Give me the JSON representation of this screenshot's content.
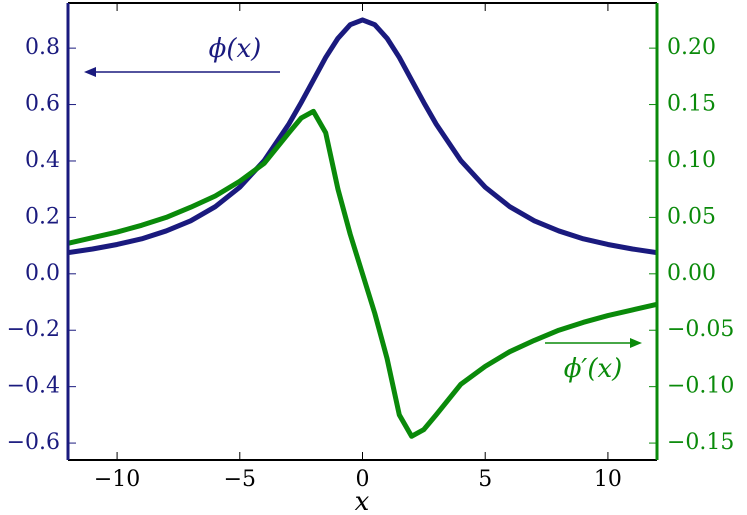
{
  "chart_data": {
    "type": "line",
    "xlabel": "x",
    "x": [
      -12,
      -11,
      -10,
      -9,
      -8,
      -7,
      -6,
      -5,
      -4,
      -3,
      -2.5,
      -2,
      -1.5,
      -1,
      -0.5,
      0,
      0.5,
      1,
      1.5,
      2,
      2.5,
      3,
      4,
      5,
      6,
      7,
      8,
      9,
      10,
      11,
      12
    ],
    "series": [
      {
        "name": "ϕ(x)",
        "color": "#1a1a7e",
        "axis": "y",
        "values": [
          0.075,
          0.088,
          0.104,
          0.124,
          0.152,
          0.188,
          0.238,
          0.307,
          0.402,
          0.531,
          0.607,
          0.687,
          0.767,
          0.835,
          0.883,
          0.9,
          0.883,
          0.835,
          0.767,
          0.687,
          0.607,
          0.531,
          0.402,
          0.307,
          0.238,
          0.188,
          0.152,
          0.124,
          0.104,
          0.088,
          0.075
        ]
      },
      {
        "name": "ϕ′(x)",
        "color": "#0a8a0a",
        "axis": "y2",
        "values": [
          0.027,
          0.032,
          0.037,
          0.043,
          0.05,
          0.059,
          0.069,
          0.082,
          0.098,
          0.125,
          0.138,
          0.144,
          0.125,
          0.075,
          0.035,
          0,
          -0.035,
          -0.075,
          -0.125,
          -0.144,
          -0.138,
          -0.125,
          -0.098,
          -0.082,
          -0.069,
          -0.059,
          -0.05,
          -0.043,
          -0.037,
          -0.032,
          -0.027
        ]
      }
    ],
    "xlim": [
      -12,
      12
    ],
    "xticks": [
      {
        "value": -10,
        "label": "−10"
      },
      {
        "value": -5,
        "label": "−5"
      },
      0,
      5,
      10
    ],
    "ylim": [
      -0.66,
      0.96
    ],
    "yticks": [
      {
        "value": -0.6,
        "label": "−0.6"
      },
      {
        "value": -0.4,
        "label": "−0.4"
      },
      {
        "value": -0.2,
        "label": "−0.2"
      },
      {
        "value": 0,
        "label": "0.0"
      },
      0.2,
      0.4,
      0.6,
      0.8
    ],
    "y2lim": [
      -0.165,
      0.24
    ],
    "y2ticks": [
      {
        "value": -0.15,
        "label": "−0.15"
      },
      {
        "value": -0.1,
        "label": "−0.10"
      },
      {
        "value": -0.05,
        "label": "−0.05"
      },
      {
        "value": 0,
        "label": "0.00"
      },
      0.05,
      {
        "value": 0.1,
        "label": "0.10"
      },
      0.15,
      {
        "value": 0.2,
        "label": "0.20"
      }
    ],
    "annotations": [
      "ϕ(x)",
      "ϕ′(x)"
    ]
  }
}
